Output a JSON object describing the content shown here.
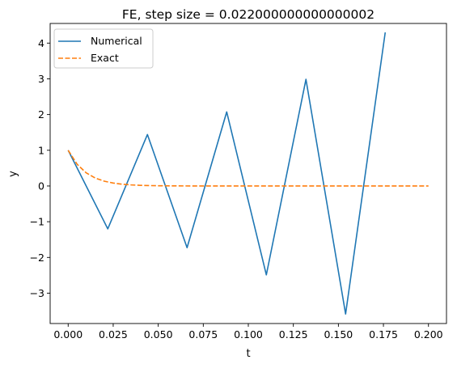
{
  "chart_data": {
    "type": "line",
    "title": "FE, step size = 0.022000000000000002",
    "xlabel": "t",
    "ylabel": "y",
    "xlim": [
      -0.01,
      0.21
    ],
    "ylim": [
      -3.85,
      4.55
    ],
    "xticks": [
      0.0,
      0.025,
      0.05,
      0.075,
      0.1,
      0.125,
      0.15,
      0.175,
      0.2
    ],
    "xtick_labels": [
      "0.000",
      "0.025",
      "0.050",
      "0.075",
      "0.100",
      "0.125",
      "0.150",
      "0.175",
      "0.200"
    ],
    "yticks": [
      -3,
      -2,
      -1,
      0,
      1,
      2,
      3,
      4
    ],
    "ytick_labels": [
      "−3",
      "−2",
      "−1",
      "0",
      "1",
      "2",
      "3",
      "4"
    ],
    "grid": false,
    "legend_position": "top-left",
    "series": [
      {
        "name": "Numerical",
        "style": "solid",
        "color": "#1f77b4",
        "x": [
          0.0,
          0.022,
          0.044,
          0.066,
          0.088,
          0.11,
          0.132,
          0.154,
          0.176
        ],
        "y": [
          1.0,
          -1.2,
          1.44,
          -1.728,
          2.0736,
          -2.48832,
          2.985984,
          -3.583181,
          4.299817
        ]
      },
      {
        "name": "Exact",
        "style": "dashed",
        "color": "#ff7f0e",
        "x": [
          0.0,
          0.005,
          0.01,
          0.015,
          0.02,
          0.025,
          0.03,
          0.035,
          0.04,
          0.045,
          0.05,
          0.06,
          0.07,
          0.08,
          0.1,
          0.12,
          0.14,
          0.16,
          0.18,
          0.2
        ],
        "y": [
          1.0,
          0.6065,
          0.3679,
          0.2231,
          0.1353,
          0.0821,
          0.0498,
          0.0302,
          0.0183,
          0.0111,
          0.0067,
          0.0025,
          0.0009,
          0.0003,
          0.0,
          0.0,
          0.0,
          0.0,
          0.0,
          0.0
        ]
      }
    ]
  }
}
